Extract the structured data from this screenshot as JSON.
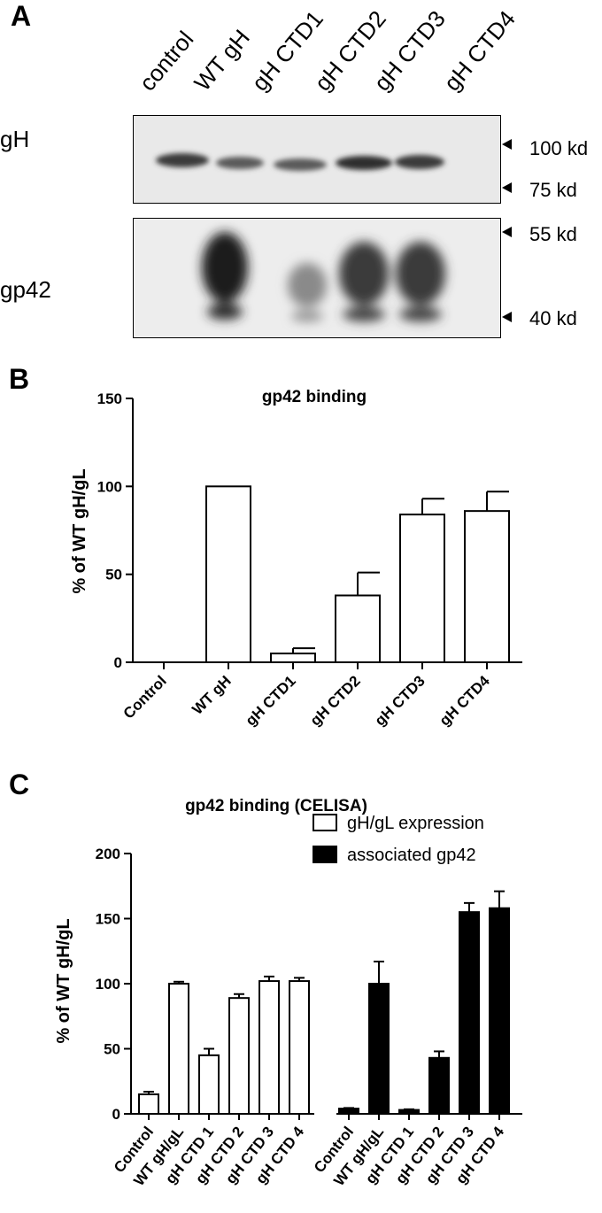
{
  "panel_a": {
    "letter": "A",
    "lanes": [
      "control",
      "WT gH",
      "gH CTD1",
      "gH CTD2",
      "gH CTD3",
      "gH CTD4"
    ],
    "blot_top": {
      "label": "gH",
      "markers": [
        "100 kd",
        "75 kd"
      ]
    },
    "blot_bottom": {
      "label": "gp42",
      "markers": [
        "55 kd",
        "40 kd"
      ]
    }
  },
  "panel_b": {
    "letter": "B"
  },
  "panel_c": {
    "letter": "C"
  },
  "chart_data": [
    {
      "type": "bar",
      "title": "gp42 binding",
      "ylabel": "% of WT gH/gL",
      "xlabel": "",
      "ylim": [
        0,
        150
      ],
      "yticks": [
        0,
        50,
        100,
        150
      ],
      "categories": [
        "Control",
        "WT gH",
        "gH CTD1",
        "gH CTD2",
        "gH CTD3",
        "gH CTD4"
      ],
      "series": [
        {
          "values": [
            0,
            100,
            5,
            38,
            84,
            86
          ],
          "errors": [
            0,
            0,
            3,
            13,
            9,
            11
          ],
          "color": "#ffffff"
        }
      ]
    },
    {
      "type": "bar",
      "title": "gp42 binding (CELISA)",
      "ylabel": "% of WT gH/gL",
      "xlabel": "",
      "ylim": [
        0,
        200
      ],
      "yticks": [
        0,
        50,
        100,
        150,
        200
      ],
      "legend": "top-right",
      "categories": [
        "Control",
        "WT gH/gL",
        "gH CTD 1",
        "gH CTD 2",
        "gH CTD 3",
        "gH CTD 4"
      ],
      "series": [
        {
          "name": "gH/gL expression",
          "values": [
            15,
            100,
            45,
            89,
            102,
            102
          ],
          "errors": [
            2,
            1.5,
            5,
            3,
            3.5,
            2.5
          ],
          "color": "#ffffff"
        },
        {
          "name": "associated gp42",
          "values": [
            4,
            100,
            3,
            43,
            155,
            158
          ],
          "errors": [
            0.5,
            17,
            0.5,
            5,
            7,
            13
          ],
          "color": "#000000"
        }
      ]
    }
  ]
}
